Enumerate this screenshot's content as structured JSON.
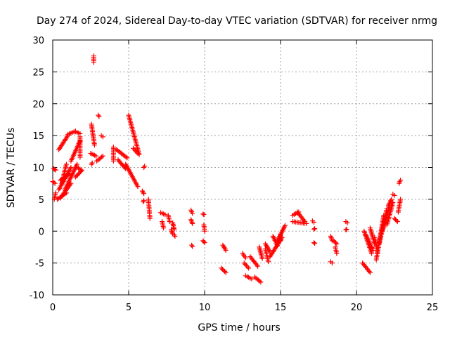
{
  "chart_data": {
    "type": "scatter",
    "title": "Day 274 of 2024, Sidereal Day-to-day VTEC variation (SDTVAR) for receiver nrmg",
    "xlabel": "GPS time / hours",
    "ylabel": "SDTVAR / TECUs",
    "xlim": [
      0,
      25
    ],
    "ylim": [
      -10,
      30
    ],
    "xticks": [
      0,
      5,
      10,
      15,
      20,
      25
    ],
    "yticks": [
      -10,
      -5,
      0,
      5,
      10,
      15,
      20,
      25,
      30
    ],
    "grid": true,
    "marker": "+",
    "color": "#ff0000",
    "series": [
      {
        "name": "SDTVAR",
        "segments": [
          {
            "x0": 0.0,
            "y0": 7.8,
            "x1": 0.15,
            "y1": 7.5
          },
          {
            "x0": 0.05,
            "y0": 9.8,
            "x1": 0.2,
            "y1": 9.6
          },
          {
            "x0": 0.1,
            "y0": 5.0,
            "x1": 0.2,
            "y1": 6.0
          },
          {
            "x0": 0.3,
            "y0": 5.0,
            "x1": 0.9,
            "y1": 6.0
          },
          {
            "x0": 0.4,
            "y0": 6.5,
            "x1": 1.2,
            "y1": 10.0
          },
          {
            "x0": 0.5,
            "y0": 8.0,
            "x1": 1.1,
            "y1": 9.0
          },
          {
            "x0": 0.5,
            "y0": 5.2,
            "x1": 1.2,
            "y1": 7.5
          },
          {
            "x0": 0.6,
            "y0": 7.5,
            "x1": 0.9,
            "y1": 10.5
          },
          {
            "x0": 0.8,
            "y0": 6.5,
            "x1": 1.6,
            "y1": 10.5
          },
          {
            "x0": 0.4,
            "y0": 12.8,
            "x1": 1.0,
            "y1": 15.0
          },
          {
            "x0": 1.0,
            "y0": 15.2,
            "x1": 1.5,
            "y1": 15.7
          },
          {
            "x0": 1.5,
            "y0": 15.6,
            "x1": 1.8,
            "y1": 15.3
          },
          {
            "x0": 1.2,
            "y0": 11.0,
            "x1": 1.8,
            "y1": 14.2
          },
          {
            "x0": 1.5,
            "y0": 8.5,
            "x1": 1.9,
            "y1": 9.5
          },
          {
            "x0": 1.6,
            "y0": 10.0,
            "x1": 1.9,
            "y1": 9.6
          },
          {
            "x0": 1.8,
            "y0": 14.8,
            "x1": 1.8,
            "y1": 11.6
          },
          {
            "x0": 2.55,
            "y0": 16.8,
            "x1": 2.75,
            "y1": 13.5
          },
          {
            "x0": 2.5,
            "y0": 12.2,
            "x1": 2.85,
            "y1": 11.8
          },
          {
            "x0": 2.55,
            "y0": 10.5,
            "x1": 2.6,
            "y1": 10.7
          },
          {
            "x0": 2.7,
            "y0": 27.5,
            "x1": 2.7,
            "y1": 26.5
          },
          {
            "x0": 2.9,
            "y0": 11.0,
            "x1": 3.3,
            "y1": 11.8
          },
          {
            "x0": 3.0,
            "y0": 18.2,
            "x1": 3.05,
            "y1": 18.0
          },
          {
            "x0": 3.2,
            "y0": 15.0,
            "x1": 3.3,
            "y1": 14.8
          },
          {
            "x0": 4.0,
            "y0": 13.2,
            "x1": 4.0,
            "y1": 11.0
          },
          {
            "x0": 4.2,
            "y0": 12.8,
            "x1": 4.9,
            "y1": 11.5
          },
          {
            "x0": 4.3,
            "y0": 11.2,
            "x1": 4.8,
            "y1": 9.8
          },
          {
            "x0": 4.8,
            "y0": 10.5,
            "x1": 5.6,
            "y1": 7.0
          },
          {
            "x0": 5.0,
            "y0": 18.2,
            "x1": 5.7,
            "y1": 12.0
          },
          {
            "x0": 5.3,
            "y0": 13.0,
            "x1": 5.6,
            "y1": 12.2
          },
          {
            "x0": 5.9,
            "y0": 6.3,
            "x1": 6.0,
            "y1": 5.9
          },
          {
            "x0": 5.95,
            "y0": 4.6,
            "x1": 6.0,
            "y1": 4.8
          },
          {
            "x0": 6.0,
            "y0": 10.0,
            "x1": 6.05,
            "y1": 10.2
          },
          {
            "x0": 6.3,
            "y0": 5.0,
            "x1": 6.4,
            "y1": 2.0
          },
          {
            "x0": 7.1,
            "y0": 2.9,
            "x1": 7.4,
            "y1": 2.6
          },
          {
            "x0": 7.2,
            "y0": 1.5,
            "x1": 7.3,
            "y1": 0.5
          },
          {
            "x0": 7.6,
            "y0": 2.5,
            "x1": 7.7,
            "y1": 1.5
          },
          {
            "x0": 7.8,
            "y0": 0.2,
            "x1": 7.9,
            "y1": -0.4
          },
          {
            "x0": 7.9,
            "y0": 1.3,
            "x1": 8.0,
            "y1": 0.2
          },
          {
            "x0": 8.0,
            "y0": -0.6,
            "x1": 8.05,
            "y1": -0.8
          },
          {
            "x0": 9.1,
            "y0": 3.3,
            "x1": 9.2,
            "y1": 2.8
          },
          {
            "x0": 9.1,
            "y0": 1.8,
            "x1": 9.2,
            "y1": 1.2
          },
          {
            "x0": 9.15,
            "y0": -2.2,
            "x1": 9.2,
            "y1": -2.4
          },
          {
            "x0": 9.9,
            "y0": 2.7,
            "x1": 9.95,
            "y1": 2.6
          },
          {
            "x0": 9.95,
            "y0": 1.0,
            "x1": 10.0,
            "y1": 0.0
          },
          {
            "x0": 9.9,
            "y0": -1.5,
            "x1": 10.0,
            "y1": -1.8
          },
          {
            "x0": 11.2,
            "y0": -2.2,
            "x1": 11.4,
            "y1": -3.0
          },
          {
            "x0": 11.1,
            "y0": -5.8,
            "x1": 11.4,
            "y1": -6.5
          },
          {
            "x0": 12.5,
            "y0": -3.5,
            "x1": 12.7,
            "y1": -4.2
          },
          {
            "x0": 12.6,
            "y0": -5.0,
            "x1": 12.9,
            "y1": -5.8
          },
          {
            "x0": 12.7,
            "y0": -7.0,
            "x1": 13.1,
            "y1": -7.5
          },
          {
            "x0": 13.3,
            "y0": -7.2,
            "x1": 13.7,
            "y1": -8.0
          },
          {
            "x0": 13.0,
            "y0": -4.0,
            "x1": 13.5,
            "y1": -5.5
          },
          {
            "x0": 13.6,
            "y0": -2.5,
            "x1": 13.8,
            "y1": -4.3
          },
          {
            "x0": 14.0,
            "y0": -2.8,
            "x1": 14.2,
            "y1": -4.8
          },
          {
            "x0": 14.0,
            "y0": -2.0,
            "x1": 14.3,
            "y1": -3.2
          },
          {
            "x0": 14.3,
            "y0": -4.0,
            "x1": 15.1,
            "y1": -1.0
          },
          {
            "x0": 14.5,
            "y0": -0.8,
            "x1": 14.8,
            "y1": -2.3
          },
          {
            "x0": 14.8,
            "y0": -1.5,
            "x1": 15.3,
            "y1": 0.9
          },
          {
            "x0": 15.0,
            "y0": -1.5,
            "x1": 15.0,
            "y1": -0.5
          },
          {
            "x0": 15.8,
            "y0": 2.5,
            "x1": 16.2,
            "y1": 3.0
          },
          {
            "x0": 15.8,
            "y0": 1.5,
            "x1": 16.7,
            "y1": 1.2
          },
          {
            "x0": 16.1,
            "y0": 3.0,
            "x1": 16.6,
            "y1": 1.5
          },
          {
            "x0": 17.1,
            "y0": 1.6,
            "x1": 17.2,
            "y1": 1.4
          },
          {
            "x0": 17.2,
            "y0": 0.3,
            "x1": 17.25,
            "y1": 0.4
          },
          {
            "x0": 17.2,
            "y0": -1.8,
            "x1": 17.25,
            "y1": -1.9
          },
          {
            "x0": 18.3,
            "y0": -0.8,
            "x1": 18.4,
            "y1": -1.5
          },
          {
            "x0": 18.3,
            "y0": -4.8,
            "x1": 18.4,
            "y1": -5.0
          },
          {
            "x0": 18.5,
            "y0": -1.5,
            "x1": 18.7,
            "y1": -2.0
          },
          {
            "x0": 18.6,
            "y0": -2.5,
            "x1": 18.7,
            "y1": -3.5
          },
          {
            "x0": 19.3,
            "y0": 1.5,
            "x1": 19.4,
            "y1": 1.3
          },
          {
            "x0": 19.3,
            "y0": 0.2,
            "x1": 19.35,
            "y1": 0.3
          },
          {
            "x0": 20.4,
            "y0": -5.0,
            "x1": 20.9,
            "y1": -6.5
          },
          {
            "x0": 20.5,
            "y0": 0.0,
            "x1": 21.0,
            "y1": -3.5
          },
          {
            "x0": 20.6,
            "y0": -0.5,
            "x1": 21.1,
            "y1": -3.0
          },
          {
            "x0": 20.9,
            "y0": 0.5,
            "x1": 21.2,
            "y1": -2.0
          },
          {
            "x0": 21.2,
            "y0": -1.0,
            "x1": 21.4,
            "y1": -3.5
          },
          {
            "x0": 21.3,
            "y0": -4.5,
            "x1": 21.8,
            "y1": 2.5
          },
          {
            "x0": 21.5,
            "y0": -2.0,
            "x1": 22.0,
            "y1": 3.5
          },
          {
            "x0": 21.7,
            "y0": 0.0,
            "x1": 22.2,
            "y1": 4.0
          },
          {
            "x0": 22.0,
            "y0": 1.0,
            "x1": 22.4,
            "y1": 4.5
          },
          {
            "x0": 22.1,
            "y0": 4.0,
            "x1": 22.3,
            "y1": 5.0
          },
          {
            "x0": 22.4,
            "y0": 5.8,
            "x1": 22.5,
            "y1": 5.6
          },
          {
            "x0": 22.5,
            "y0": 2.0,
            "x1": 22.7,
            "y1": 1.5
          },
          {
            "x0": 22.75,
            "y0": 3.0,
            "x1": 22.9,
            "y1": 5.0
          },
          {
            "x0": 22.8,
            "y0": 7.5,
            "x1": 22.9,
            "y1": 8.0
          }
        ]
      }
    ]
  }
}
